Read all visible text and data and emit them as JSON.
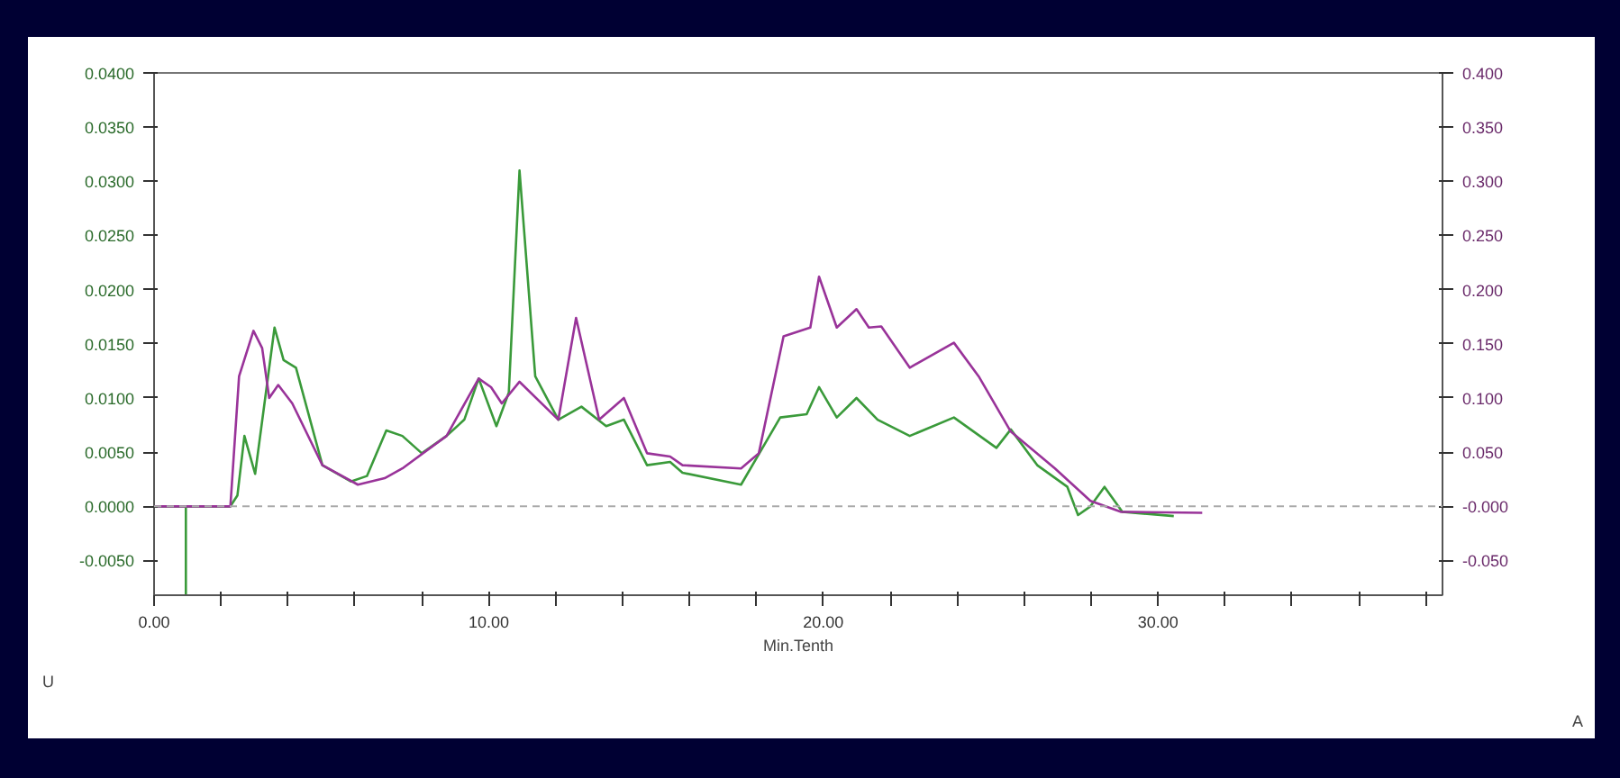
{
  "chart_data": {
    "type": "line",
    "xlabel": "Min.Tenth",
    "annotations": [
      "U",
      "A"
    ],
    "xlim": [
      0,
      38.5
    ],
    "ylim": [
      -0.0082,
      0.04
    ],
    "y2lim": [
      -0.082,
      0.4
    ],
    "xticks": [
      {
        "value": 0,
        "label": "0.00"
      },
      {
        "value": 2,
        "label": null
      },
      {
        "value": 4,
        "label": null
      },
      {
        "value": 6,
        "label": null
      },
      {
        "value": 8,
        "label": null
      },
      {
        "value": 10,
        "label": "10.00"
      },
      {
        "value": 12,
        "label": null
      },
      {
        "value": 14,
        "label": null
      },
      {
        "value": 16,
        "label": null
      },
      {
        "value": 18,
        "label": null
      },
      {
        "value": 20,
        "label": "20.00"
      },
      {
        "value": 22,
        "label": null
      },
      {
        "value": 24,
        "label": null
      },
      {
        "value": 26,
        "label": null
      },
      {
        "value": 28,
        "label": null
      },
      {
        "value": 30,
        "label": "30.00"
      },
      {
        "value": 32,
        "label": null
      },
      {
        "value": 34,
        "label": null
      },
      {
        "value": 36,
        "label": null
      },
      {
        "value": 38,
        "label": null
      }
    ],
    "yticks": [
      {
        "value": -0.005,
        "label": "-0.0050"
      },
      {
        "value": 0,
        "label": "0.0000"
      },
      {
        "value": 0.005,
        "label": "0.0050"
      },
      {
        "value": 0.01,
        "label": "0.0100"
      },
      {
        "value": 0.015,
        "label": "0.0150"
      },
      {
        "value": 0.02,
        "label": "0.0200"
      },
      {
        "value": 0.025,
        "label": "0.0250"
      },
      {
        "value": 0.03,
        "label": "0.0300"
      },
      {
        "value": 0.035,
        "label": "0.0350"
      },
      {
        "value": 0.04,
        "label": "0.0400"
      }
    ],
    "y2ticks": [
      {
        "value": -0.05,
        "label": "-0.050"
      },
      {
        "value": 0,
        "label": "-0.000"
      },
      {
        "value": 0.05,
        "label": "0.050"
      },
      {
        "value": 0.1,
        "label": "0.100"
      },
      {
        "value": 0.15,
        "label": "0.150"
      },
      {
        "value": 0.2,
        "label": "0.200"
      },
      {
        "value": 0.25,
        "label": "0.250"
      },
      {
        "value": 0.3,
        "label": "0.300"
      },
      {
        "value": 0.35,
        "label": "0.350"
      },
      {
        "value": 0.4,
        "label": "0.400"
      }
    ],
    "grid": false,
    "ref_lines": [
      {
        "axis": "y",
        "value": 0,
        "label": null,
        "color": "#aaaaaa",
        "line_style": "dashed"
      }
    ],
    "series": [
      {
        "color": "#3a9a3a",
        "x": [
          0,
          0.95,
          0.95,
          0.95,
          2.28,
          2.49,
          2.7,
          3.02,
          3.6,
          3.87,
          4.24,
          5.03,
          5.88,
          6.36,
          6.94,
          7.42,
          8.0,
          8.74,
          9.27,
          9.7,
          10.23,
          10.6,
          10.92,
          11.39,
          12.08,
          12.77,
          13.51,
          14.04,
          14.73,
          15.42,
          15.79,
          17.54,
          18.71,
          19.5,
          19.87,
          20.4,
          20.99,
          21.62,
          22.58,
          23.9,
          25.17,
          25.6,
          26.39,
          27.29,
          27.61,
          27.98,
          28.4,
          28.93,
          30.47
        ],
        "values": [
          0,
          0,
          -0.0082,
          0,
          0,
          0.001,
          0.0065,
          0.003,
          0.0165,
          0.0135,
          0.0128,
          0.0038,
          0.0023,
          0.0028,
          0.007,
          0.0065,
          0.0049,
          0.0065,
          0.008,
          0.0118,
          0.0074,
          0.0105,
          0.031,
          0.012,
          0.008,
          0.0092,
          0.0074,
          0.008,
          0.0038,
          0.0041,
          0.0031,
          0.002,
          0.0082,
          0.0085,
          0.011,
          0.0082,
          0.01,
          0.008,
          0.0065,
          0.0082,
          0.0054,
          0.0071,
          0.0038,
          0.0018,
          -0.0008,
          0,
          0.0018,
          -0.0005,
          -0.0009
        ]
      },
      {
        "color": "#993399",
        "axis": "y2",
        "x": [
          0,
          2.28,
          2.54,
          2.97,
          3.23,
          3.44,
          3.71,
          4.13,
          5.03,
          6.09,
          6.89,
          7.42,
          8.74,
          9.7,
          10.07,
          10.39,
          10.92,
          12.08,
          12.61,
          13.3,
          14.04,
          14.73,
          15.42,
          15.79,
          17.54,
          18.07,
          18.81,
          19.61,
          19.87,
          20.4,
          20.99,
          21.36,
          21.73,
          22.58,
          23.9,
          24.64,
          25.6,
          26.92,
          27.98,
          28.88,
          31.32
        ],
        "values": [
          0,
          0,
          0.12,
          0.162,
          0.146,
          0.1,
          0.112,
          0.095,
          0.038,
          0.02,
          0.026,
          0.035,
          0.065,
          0.118,
          0.11,
          0.095,
          0.115,
          0.08,
          0.174,
          0.08,
          0.1,
          0.049,
          0.046,
          0.038,
          0.035,
          0.049,
          0.157,
          0.165,
          0.212,
          0.165,
          0.182,
          0.165,
          0.166,
          0.128,
          0.151,
          0.12,
          0.069,
          0.035,
          0.005,
          -0.005,
          -0.006
        ]
      }
    ]
  }
}
